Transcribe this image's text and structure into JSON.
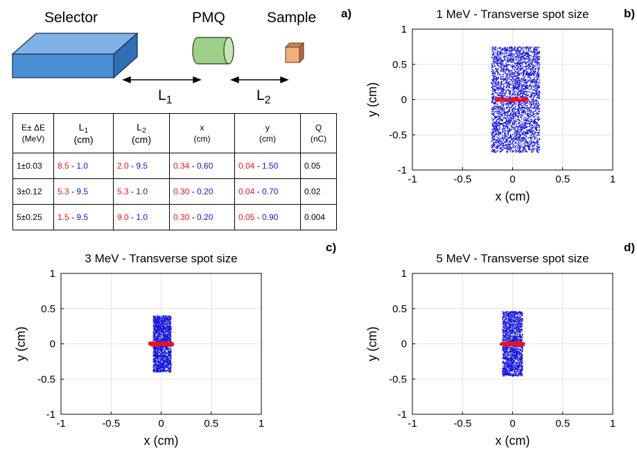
{
  "schematic": {
    "selector_label": "Selector",
    "pmq_label": "PMQ",
    "sample_label": "Sample",
    "l1_label": "L",
    "l1_sub": "1",
    "l2_label": "L",
    "l2_sub": "2",
    "colors": {
      "selector": "#4a8fd4",
      "pmq": "#9fd08a",
      "sample": "#f2b07a"
    }
  },
  "table": {
    "headers": [
      {
        "line1": "E± ΔE",
        "line2": "(MeV)"
      },
      {
        "line1": "L",
        "sub": "1",
        "line2": "(cm)"
      },
      {
        "line1": "L",
        "sub": "2",
        "line2": "(cm)"
      },
      {
        "line1": "x",
        "line2": "(cm)"
      },
      {
        "line1": "y",
        "line2": "(cm)"
      },
      {
        "line1": "Q",
        "line2": "(nC)"
      }
    ],
    "rows": [
      {
        "e": "1±0.03",
        "l1": [
          "8.5",
          "1.0"
        ],
        "l2": [
          "2.0",
          "9.5"
        ],
        "x": [
          "0.34",
          "0.60"
        ],
        "y": [
          "0.04",
          "1.50"
        ],
        "q": "0.05"
      },
      {
        "e": "3±0.12",
        "l1": [
          "5.3",
          "9.5"
        ],
        "l2": [
          "5.3",
          "1.0"
        ],
        "x": [
          "0.30",
          "0.20"
        ],
        "y": [
          "0.04",
          "0.70"
        ],
        "q": "0.02"
      },
      {
        "e": "5±0.25",
        "l1": [
          "1.5",
          "9.5"
        ],
        "l2": [
          "9.0",
          "1.0"
        ],
        "x": [
          "0.30",
          "0.20"
        ],
        "y": [
          "0.05",
          "0.90"
        ],
        "q": "0.004"
      }
    ],
    "separator": "-",
    "colors": {
      "first": "#e8141c",
      "second": "#1414e0"
    }
  },
  "panel_letters": {
    "a": "a)",
    "b": "b)",
    "c": "c)",
    "d": "d)"
  },
  "chart_data": [
    {
      "type": "scatter",
      "title": "1 MeV - Transverse spot size",
      "xlabel": "x (cm)",
      "ylabel": "y (cm)",
      "xlim": [
        -1,
        1
      ],
      "ylim": [
        -1,
        1
      ],
      "xticks": [
        "-1",
        "-0.5",
        "0",
        "0.5",
        "1"
      ],
      "yticks": [
        "1",
        "0.5",
        "0",
        "-0.5",
        "-1"
      ],
      "grid": true,
      "series": [
        {
          "color": "#1414e0",
          "distribution": "uniform",
          "x_range": [
            -0.21,
            0.27
          ],
          "y_range": [
            -0.75,
            0.75
          ]
        },
        {
          "color": "#e8141c",
          "distribution": "line",
          "x_range": [
            -0.17,
            0.17
          ],
          "y_range": [
            -0.02,
            0.02
          ]
        }
      ]
    },
    {
      "type": "scatter",
      "title": "3 MeV - Transverse spot size",
      "xlabel": "x (cm)",
      "ylabel": "y (cm)",
      "xlim": [
        -1,
        1
      ],
      "ylim": [
        -1,
        1
      ],
      "xticks": [
        "-1",
        "-0.5",
        "0",
        "0.5",
        "1"
      ],
      "yticks": [
        "1",
        "0.5",
        "0",
        "-0.5",
        "-1"
      ],
      "grid": true,
      "series": [
        {
          "color": "#1414e0",
          "distribution": "uniform",
          "x_range": [
            -0.08,
            0.1
          ],
          "y_range": [
            -0.4,
            0.4
          ]
        },
        {
          "color": "#e8141c",
          "distribution": "line",
          "x_range": [
            -0.12,
            0.12
          ],
          "y_range": [
            -0.02,
            0.02
          ]
        }
      ]
    },
    {
      "type": "scatter",
      "title": "5 MeV - Transverse spot size",
      "xlabel": "x (cm)",
      "ylabel": "y (cm)",
      "xlim": [
        -1,
        1
      ],
      "ylim": [
        -1,
        1
      ],
      "xticks": [
        "-1",
        "-0.5",
        "0",
        "0.5",
        "1"
      ],
      "yticks": [
        "1",
        "0.5",
        "0",
        "-0.5",
        "-1"
      ],
      "grid": true,
      "series": [
        {
          "color": "#1414e0",
          "distribution": "uniform",
          "x_range": [
            -0.1,
            0.1
          ],
          "y_range": [
            -0.46,
            0.46
          ]
        },
        {
          "color": "#e8141c",
          "distribution": "line",
          "x_range": [
            -0.12,
            0.12
          ],
          "y_range": [
            -0.02,
            0.02
          ]
        }
      ]
    }
  ]
}
